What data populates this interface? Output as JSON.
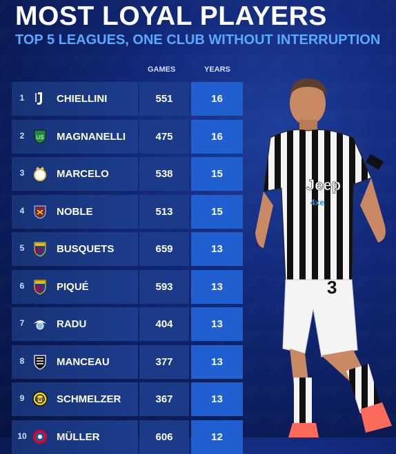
{
  "header": {
    "title": "MOST LOYAL PLAYERS",
    "subtitle": "TOP 5 LEAGUES, ONE CLUB WITHOUT INTERRUPTION"
  },
  "columns": {
    "games": "GAMES",
    "years": "YEARS"
  },
  "rows": [
    {
      "rank": "1",
      "name": "CHIELLINI",
      "games": "551",
      "years": "16",
      "crest": "juventus-crest-icon",
      "color": "#ffffff"
    },
    {
      "rank": "2",
      "name": "MAGNANELLI",
      "games": "475",
      "years": "16",
      "crest": "sassuolo-crest-icon",
      "color": "#1f8a3b"
    },
    {
      "rank": "3",
      "name": "MARCELO",
      "games": "538",
      "years": "15",
      "crest": "real-madrid-crest-icon",
      "color": "#e8c35a"
    },
    {
      "rank": "4",
      "name": "NOBLE",
      "games": "513",
      "years": "15",
      "crest": "west-ham-crest-icon",
      "color": "#7a263a"
    },
    {
      "rank": "5",
      "name": "BUSQUETS",
      "games": "659",
      "years": "13",
      "crest": "barcelona-crest-icon",
      "color": "#a50044"
    },
    {
      "rank": "6",
      "name": "PIQUÉ",
      "games": "593",
      "years": "13",
      "crest": "barcelona-crest-icon",
      "color": "#a50044"
    },
    {
      "rank": "7",
      "name": "RADU",
      "games": "404",
      "years": "13",
      "crest": "lazio-crest-icon",
      "color": "#87c3e8"
    },
    {
      "rank": "8",
      "name": "MANCEAU",
      "games": "377",
      "years": "13",
      "crest": "angers-crest-icon",
      "color": "#ffffff"
    },
    {
      "rank": "9",
      "name": "SCHMELZER",
      "games": "367",
      "years": "13",
      "crest": "dortmund-crest-icon",
      "color": "#fde100"
    },
    {
      "rank": "10",
      "name": "MÜLLER",
      "games": "606",
      "years": "12",
      "crest": "bayern-crest-icon",
      "color": "#dc052d"
    }
  ],
  "player": {
    "shirt_text": "Jeep",
    "shirt_sub": "4xe",
    "number": "3"
  }
}
